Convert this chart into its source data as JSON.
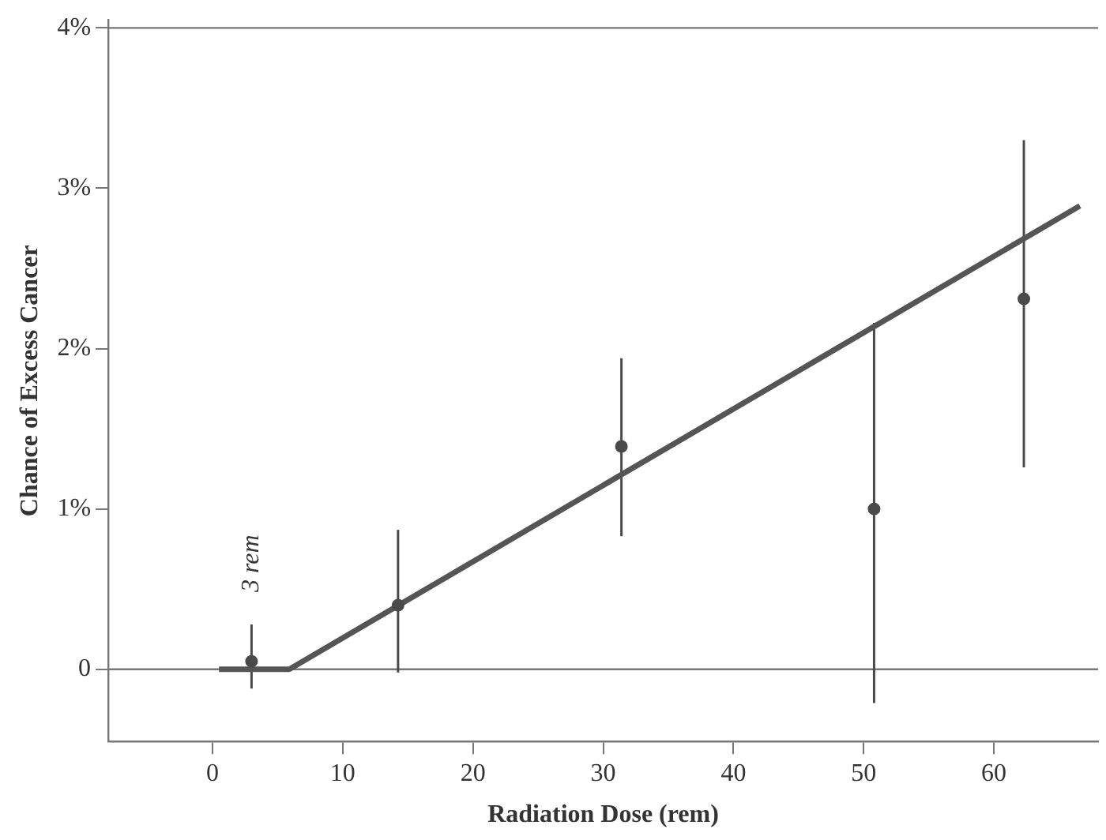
{
  "chart_data": {
    "type": "scatter",
    "xlabel": "Radiation Dose (rem)",
    "ylabel": "Chance of Excess Cancer",
    "xlim": [
      -8,
      68
    ],
    "xticks": [
      0,
      10,
      20,
      30,
      40,
      50,
      60
    ],
    "ylim": [
      -0.45,
      4.05
    ],
    "yticks": [
      {
        "value": 0,
        "label": "0"
      },
      {
        "value": 1,
        "label": "1%"
      },
      {
        "value": 2,
        "label": "2%"
      },
      {
        "value": 3,
        "label": "3%"
      },
      {
        "value": 4,
        "label": "4%"
      }
    ],
    "grid": false,
    "legend": false,
    "series": [
      {
        "color": "#4a4a4a",
        "marker": "circle",
        "x": [
          3,
          14.25,
          31.4,
          50.8,
          62.3
        ],
        "values": [
          0.05,
          0.4,
          1.39,
          1.0,
          2.31
        ],
        "errors": [
          [
            -0.12,
            0.28
          ],
          [
            -0.02,
            0.87
          ],
          [
            0.83,
            1.94
          ],
          [
            -0.21,
            2.16
          ],
          [
            1.26,
            3.3
          ]
        ]
      },
      {
        "type": "line",
        "color": "#555555",
        "line_style": "solid",
        "marker": "none",
        "x": [
          0.5,
          5.9,
          66.6
        ],
        "values": [
          0,
          0,
          2.89
        ]
      }
    ],
    "ref_lines": [
      {
        "axis": "y",
        "value": 0,
        "color": "#777777"
      },
      {
        "axis": "y",
        "value": 4,
        "color": "#777777"
      }
    ],
    "annotations": [
      {
        "text": "3 rem",
        "x": 3,
        "y": 0.05
      }
    ]
  }
}
